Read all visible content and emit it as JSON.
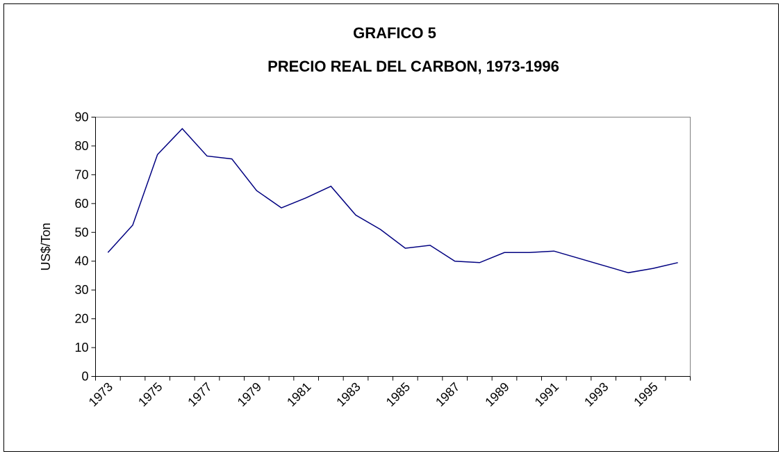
{
  "chart_data": {
    "type": "line",
    "title": "GRAFICO 5",
    "subtitle": "PRECIO REAL DEL CARBON, 1973-1996",
    "y_label": "US$/Ton",
    "categories": [
      "1973",
      null,
      "1975",
      null,
      "1977",
      null,
      "1979",
      null,
      "1981",
      null,
      "1983",
      null,
      "1985",
      null,
      "1987",
      null,
      "1989",
      null,
      "1991",
      null,
      "1993",
      null,
      "1995",
      null
    ],
    "values": [
      43,
      52.5,
      77,
      86,
      76.5,
      75.5,
      64.5,
      58.5,
      62,
      66,
      56,
      51,
      44.5,
      45.5,
      40,
      39.5,
      43,
      43,
      43.5,
      41,
      38.5,
      36,
      37.5,
      39.5
    ],
    "color": "#000080",
    "ylim": [
      0,
      90
    ],
    "yticks": [
      0,
      10,
      20,
      30,
      40,
      50,
      60,
      70,
      80,
      90
    ],
    "grid": false
  }
}
